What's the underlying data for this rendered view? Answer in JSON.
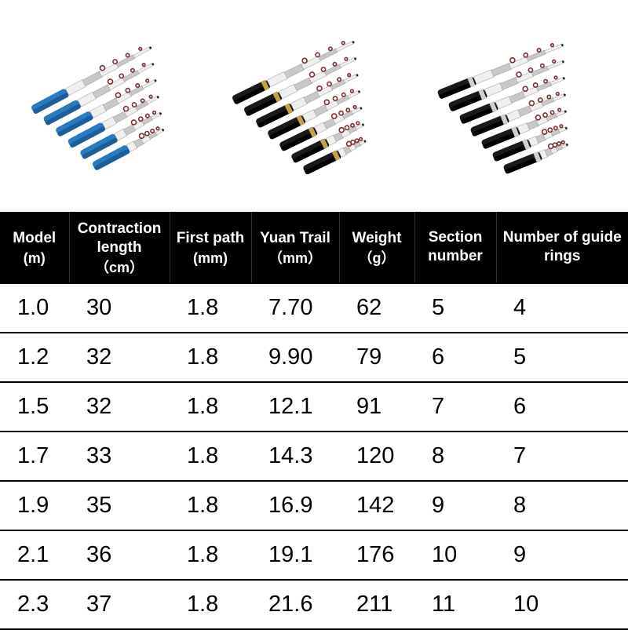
{
  "images": {
    "variants": [
      {
        "name": "blue-variant",
        "handle_color": "#2a7ac2",
        "handle_color2": "#1d5e9a",
        "body_color": "#c8c8c8",
        "body_color2": "#efefef",
        "ring_color": "#7a3030",
        "tip_color": "#222",
        "rotate": -28,
        "count": 6
      },
      {
        "name": "black-gold-variant",
        "handle_color": "#1a1a1a",
        "handle_color2": "#000000",
        "body_color": "#c8c8c8",
        "body_color2": "#efefef",
        "ring_color": "#7a3030",
        "tip_color": "#222",
        "accent_color": "#c4a24a",
        "rotate": -26,
        "count": 7
      },
      {
        "name": "black-silver-variant",
        "handle_color": "#1a1a1a",
        "handle_color2": "#000000",
        "body_color": "#c8c8c8",
        "body_color2": "#efefef",
        "ring_color": "#7a3030",
        "tip_color": "#222",
        "accent_color": "#d0d0d0",
        "rotate": -22,
        "count": 7
      }
    ]
  },
  "table": {
    "columns": [
      {
        "label": "Model",
        "unit": "(m)"
      },
      {
        "label": "Contraction length",
        "unit": "（cm）"
      },
      {
        "label": "First path",
        "unit": "(mm)"
      },
      {
        "label": "Yuan Trail",
        "unit": "（mm）"
      },
      {
        "label": "Weight",
        "unit": "（g）"
      },
      {
        "label": "Section number",
        "unit": ""
      },
      {
        "label": "Number of guide rings",
        "unit": ""
      }
    ],
    "rows": [
      [
        "1.0",
        "30",
        "1.8",
        "7.70",
        "62",
        "5",
        "4"
      ],
      [
        "1.2",
        "32",
        "1.8",
        "9.90",
        "79",
        "6",
        "5"
      ],
      [
        "1.5",
        "32",
        "1.8",
        "12.1",
        "91",
        "7",
        "6"
      ],
      [
        "1.7",
        "33",
        "1.8",
        "14.3",
        "120",
        "8",
        "7"
      ],
      [
        "1.9",
        "35",
        "1.8",
        "16.9",
        "142",
        "9",
        "8"
      ],
      [
        "2.1",
        "36",
        "1.8",
        "19.1",
        "176",
        "10",
        "9"
      ],
      [
        "2.3",
        "37",
        "1.8",
        "21.6",
        "211",
        "11",
        "10"
      ]
    ],
    "header_bg": "#000000",
    "header_fg": "#ffffff",
    "cell_fg": "#000000",
    "border_color": "#000000",
    "header_fontsize": 19,
    "cell_fontsize": 29
  }
}
